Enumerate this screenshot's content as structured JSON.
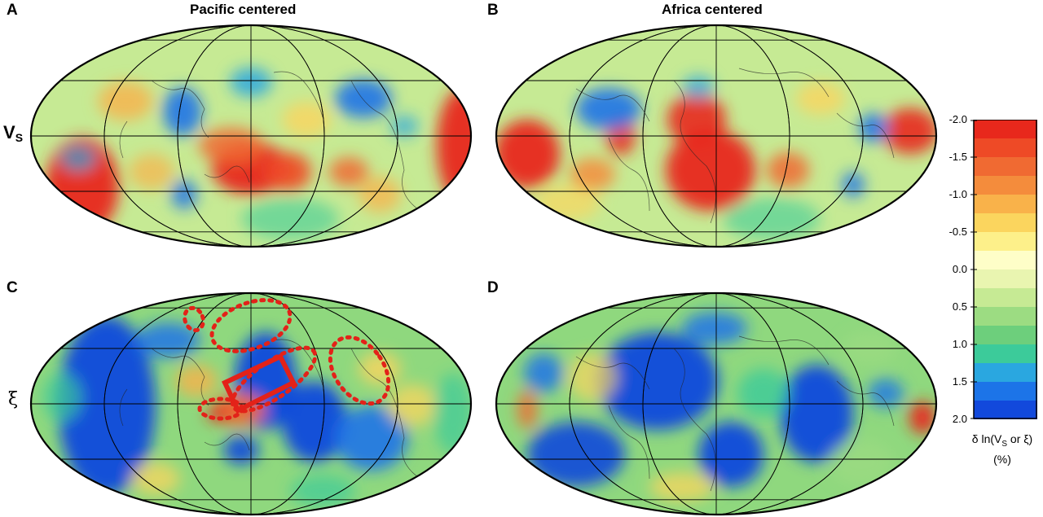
{
  "panels": [
    {
      "letter": "A",
      "column_title": "Pacific centered",
      "row": "vs",
      "id": "A"
    },
    {
      "letter": "B",
      "column_title": "Africa centered",
      "row": "vs",
      "id": "B"
    },
    {
      "letter": "C",
      "row": "xi",
      "id": "C"
    },
    {
      "letter": "D",
      "row": "xi",
      "id": "D"
    }
  ],
  "row_labels": {
    "vs_main": "V",
    "vs_sub": "S",
    "xi": "ξ"
  },
  "colorbar": {
    "ticks": [
      "-2.0",
      "-1.5",
      "-1.0",
      "-0.5",
      "0.0",
      "0.5",
      "1.0",
      "1.5",
      "2.0"
    ],
    "colors": [
      "#e8281c",
      "#ee4a26",
      "#f06a32",
      "#f48c3c",
      "#f9b24a",
      "#fbd55e",
      "#fdf08a",
      "#fefec8",
      "#e9f5b0",
      "#c6ea94",
      "#9cdc82",
      "#6dcf7c",
      "#3ccb9a",
      "#2aa7e0",
      "#1c74e8",
      "#1249dc"
    ],
    "label_line1_a": "δ ln(V",
    "label_line1_sub": "S",
    "label_line1_b": " or ξ)",
    "label_line2": "(%)",
    "range": [
      -2.0,
      2.0
    ]
  },
  "colors": {
    "hot": "#e8281c",
    "cold": "#1249dc",
    "annotation": "#e32219"
  }
}
